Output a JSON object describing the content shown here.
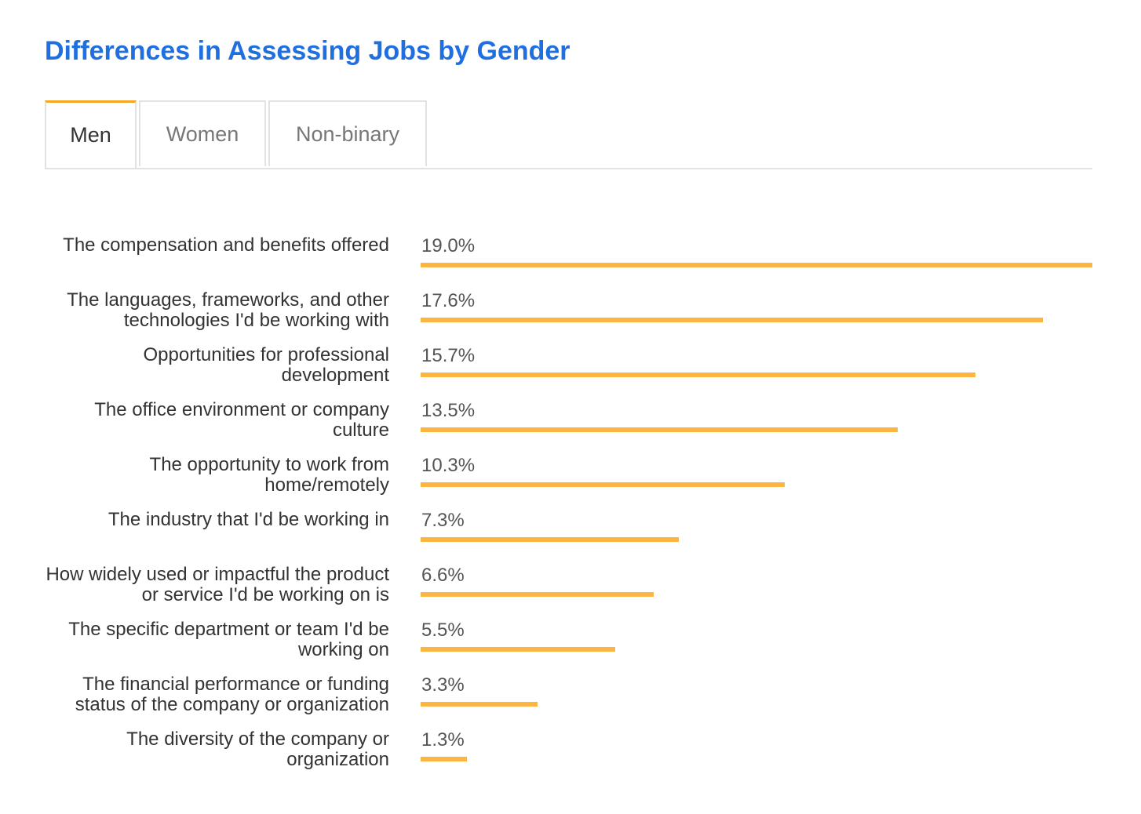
{
  "title": "Differences in Assessing Jobs by Gender",
  "tabs": [
    {
      "label": "Men",
      "active": true
    },
    {
      "label": "Women",
      "active": false
    },
    {
      "label": "Non-binary",
      "active": false
    }
  ],
  "colors": {
    "title": "#1f6fe0",
    "bar": "#fbb540",
    "active_tab_accent": "#f5a623"
  },
  "chart_data": {
    "type": "bar",
    "orientation": "horizontal",
    "categories": [
      "The compensation and benefits offered",
      "The languages, frameworks, and other technologies I'd be working with",
      "Opportunities for professional development",
      "The office environment or company culture",
      "The opportunity to work from home/remotely",
      "The industry that I'd be working in",
      "How widely used or impactful the product or service I'd be working on is",
      "The specific department or team I'd be working on",
      "The financial performance or funding status of the company or organization",
      "The diversity of the company or organization"
    ],
    "values": [
      19.0,
      17.6,
      15.7,
      13.5,
      10.3,
      7.3,
      6.6,
      5.5,
      3.3,
      1.3
    ],
    "value_labels": [
      "19.0%",
      "17.6%",
      "15.7%",
      "13.5%",
      "10.3%",
      "7.3%",
      "6.6%",
      "5.5%",
      "3.3%",
      "1.3%"
    ],
    "xlim": [
      0,
      19.0
    ],
    "grid": false
  }
}
